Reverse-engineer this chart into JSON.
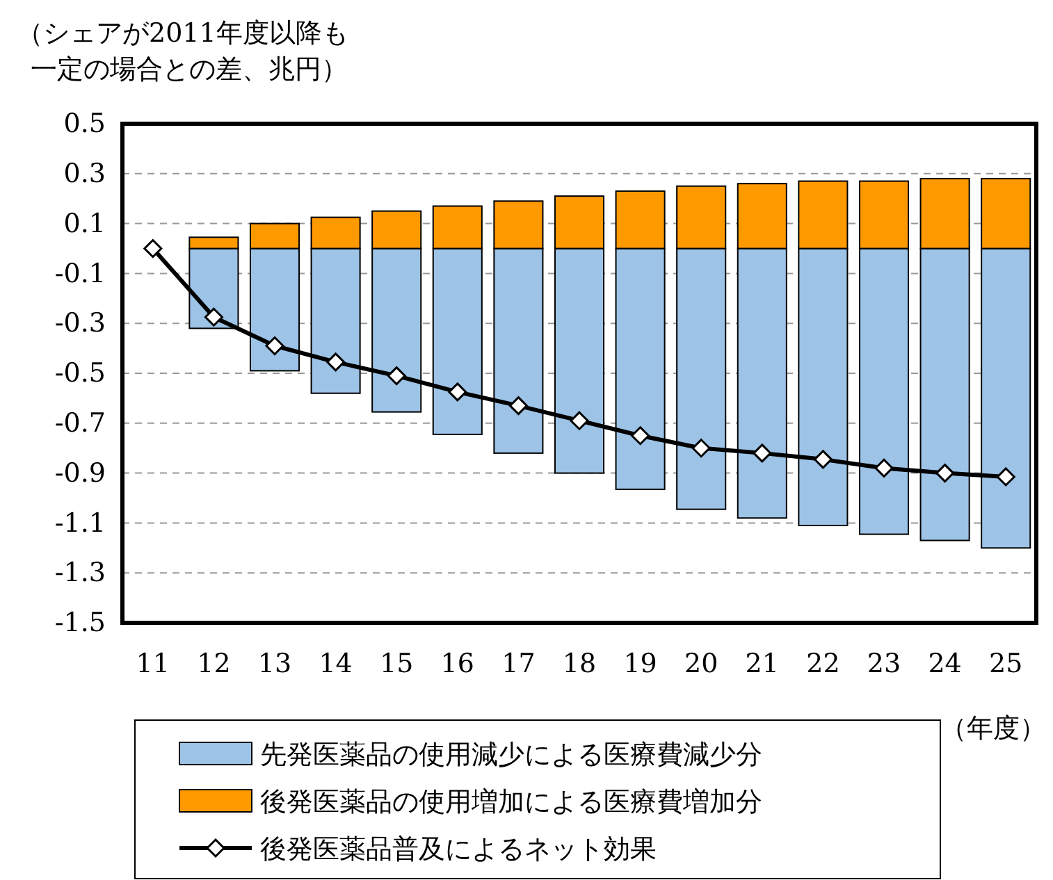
{
  "chart_data": {
    "type": "bar",
    "ylabel": "（シェアが2011年度以降も一定の場合との差、兆円）",
    "xlabel": "（年度）",
    "categories": [
      "11",
      "12",
      "13",
      "14",
      "15",
      "16",
      "17",
      "18",
      "19",
      "20",
      "21",
      "22",
      "23",
      "24",
      "25"
    ],
    "stacked": true,
    "ylim": [
      -1.5,
      0.5
    ],
    "yticks": [
      0.5,
      0.3,
      0.1,
      -0.1,
      -0.3,
      -0.5,
      -0.7,
      -0.9,
      -1.1,
      -1.3,
      -1.5
    ],
    "grid": "y",
    "legend": "bottom",
    "series": [
      {
        "name": "先発医薬品の使用減少による医療費減少分",
        "color": "#9dc3e6",
        "values": [
          null,
          -0.32,
          -0.49,
          -0.58,
          -0.655,
          -0.745,
          -0.82,
          -0.9,
          -0.965,
          -1.045,
          -1.08,
          -1.11,
          -1.145,
          -1.17,
          -1.2
        ]
      },
      {
        "name": "後発医薬品の使用増加による医療費増加分",
        "color": "#ff9900",
        "values": [
          null,
          0.045,
          0.1,
          0.125,
          0.15,
          0.17,
          0.19,
          0.21,
          0.23,
          0.25,
          0.26,
          0.27,
          0.27,
          0.28,
          0.28
        ]
      },
      {
        "name": "後発医薬品普及によるネット効果",
        "type": "line",
        "color": "#000000",
        "marker": "diamond",
        "line_style": "solid",
        "values": [
          0,
          -0.275,
          -0.39,
          -0.455,
          -0.51,
          -0.575,
          -0.63,
          -0.69,
          -0.75,
          -0.8,
          -0.82,
          -0.845,
          -0.88,
          -0.9,
          -0.915
        ]
      }
    ]
  }
}
